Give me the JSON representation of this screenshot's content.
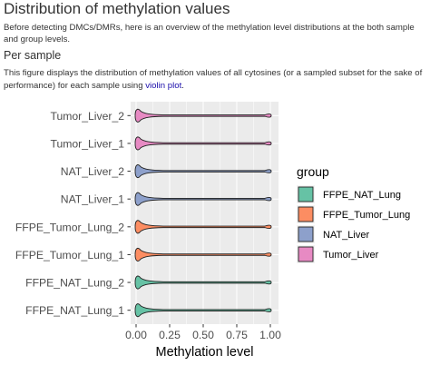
{
  "page": {
    "title": "Distribution of methylation values",
    "intro": "Before detecting DMCs/DMRs, here is an overview of the methylation level distributions at the both sample and group levels.",
    "section_title": "Per sample",
    "desc_before": "This figure displays the distribution of methylation values of all cytosines (or a sampled subset for the sake of performance) for each sample using ",
    "desc_link": "violin plot",
    "desc_after": "."
  },
  "colors": {
    "FFPE_NAT_Lung": "#66c2a5",
    "FFPE_Tumor_Lung": "#fc8d62",
    "NAT_Liver": "#8da0cb",
    "Tumor_Liver": "#e78ac3",
    "panel_bg": "#ebebeb",
    "grid": "#ffffff"
  },
  "chart_data": {
    "type": "violin",
    "xlabel": "Methylation level",
    "xlim": [
      0,
      1
    ],
    "xticks": [
      "0.00",
      "0.25",
      "0.50",
      "0.75",
      "1.00"
    ],
    "legend_title": "group",
    "legend_position": "right",
    "groups": [
      "FFPE_NAT_Lung",
      "FFPE_Tumor_Lung",
      "NAT_Liver",
      "Tumor_Liver"
    ],
    "samples": [
      {
        "name": "Tumor_Liver_2",
        "group": "Tumor_Liver"
      },
      {
        "name": "Tumor_Liver_1",
        "group": "Tumor_Liver"
      },
      {
        "name": "NAT_Liver_2",
        "group": "NAT_Liver"
      },
      {
        "name": "NAT_Liver_1",
        "group": "NAT_Liver"
      },
      {
        "name": "FFPE_Tumor_Lung_2",
        "group": "FFPE_Tumor_Lung"
      },
      {
        "name": "FFPE_Tumor_Lung_1",
        "group": "FFPE_Tumor_Lung"
      },
      {
        "name": "FFPE_NAT_Lung_2",
        "group": "FFPE_NAT_Lung"
      },
      {
        "name": "FFPE_NAT_Lung_1",
        "group": "FFPE_NAT_Lung"
      }
    ]
  }
}
